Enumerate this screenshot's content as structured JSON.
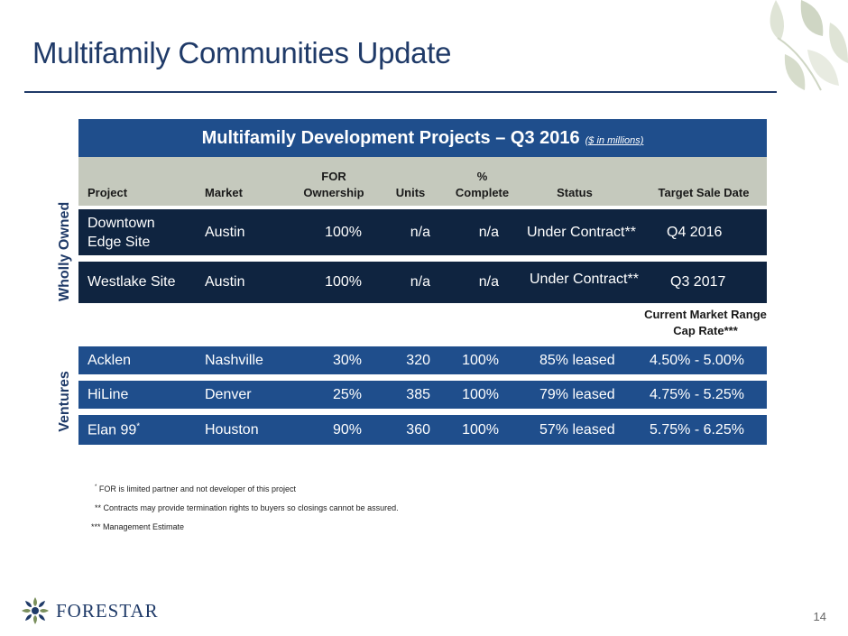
{
  "slide": {
    "title": "Multifamily Communities Update",
    "page_number": "14"
  },
  "banner": {
    "title": "Multifamily Development Projects – Q3 2016",
    "subtitle": "($ in millions)"
  },
  "headers": {
    "project": "Project",
    "market": "Market",
    "ownership_line1": "FOR",
    "ownership_line2": "Ownership",
    "units": "Units",
    "complete_line1": "%",
    "complete_line2": "Complete",
    "status": "Status",
    "target": "Target Sale Date",
    "cap_line1": "Current Market Range",
    "cap_line2": "Cap Rate***"
  },
  "groups": {
    "wholly_owned": "Wholly Owned",
    "ventures": "Ventures"
  },
  "wholly_owned_rows": [
    {
      "project_line1": "Downtown",
      "project_line2": "Edge Site",
      "market": "Austin",
      "ownership": "100%",
      "units": "n/a",
      "complete": "n/a",
      "status": "Under Contract**",
      "target": "Q4 2016"
    },
    {
      "project": "Westlake Site",
      "market": "Austin",
      "ownership": "100%",
      "units": "n/a",
      "complete": "n/a",
      "status": "Under Contract**",
      "target": "Q3 2017"
    }
  ],
  "venture_rows": [
    {
      "project": "Acklen",
      "market": "Nashville",
      "ownership": "30%",
      "units": "320",
      "complete": "100%",
      "status": "85% leased",
      "cap_rate": "4.50% - 5.00%"
    },
    {
      "project": "HiLine",
      "market": "Denver",
      "ownership": "25%",
      "units": "385",
      "complete": "100%",
      "status": "79% leased",
      "cap_rate": "4.75% - 5.25%"
    },
    {
      "project": "Elan 99",
      "project_mark": "*",
      "market": "Houston",
      "ownership": "90%",
      "units": "360",
      "complete": "100%",
      "status": "57% leased",
      "cap_rate": "5.75% - 6.25%"
    }
  ],
  "footnotes": {
    "note1_mark": "*",
    "note1": "FOR is limited partner and not developer of this project",
    "note2": "** Contracts may provide termination rights to buyers so closings cannot be assured.",
    "note3": "*** Management Estimate"
  },
  "logo": {
    "text": "FORESTAR",
    "icon": "tree-seal-icon"
  },
  "colors": {
    "title": "#1f3a68",
    "banner": "#1f4e8c",
    "dark_row": "#0f2440",
    "header_bg": "#c5c9bd"
  }
}
